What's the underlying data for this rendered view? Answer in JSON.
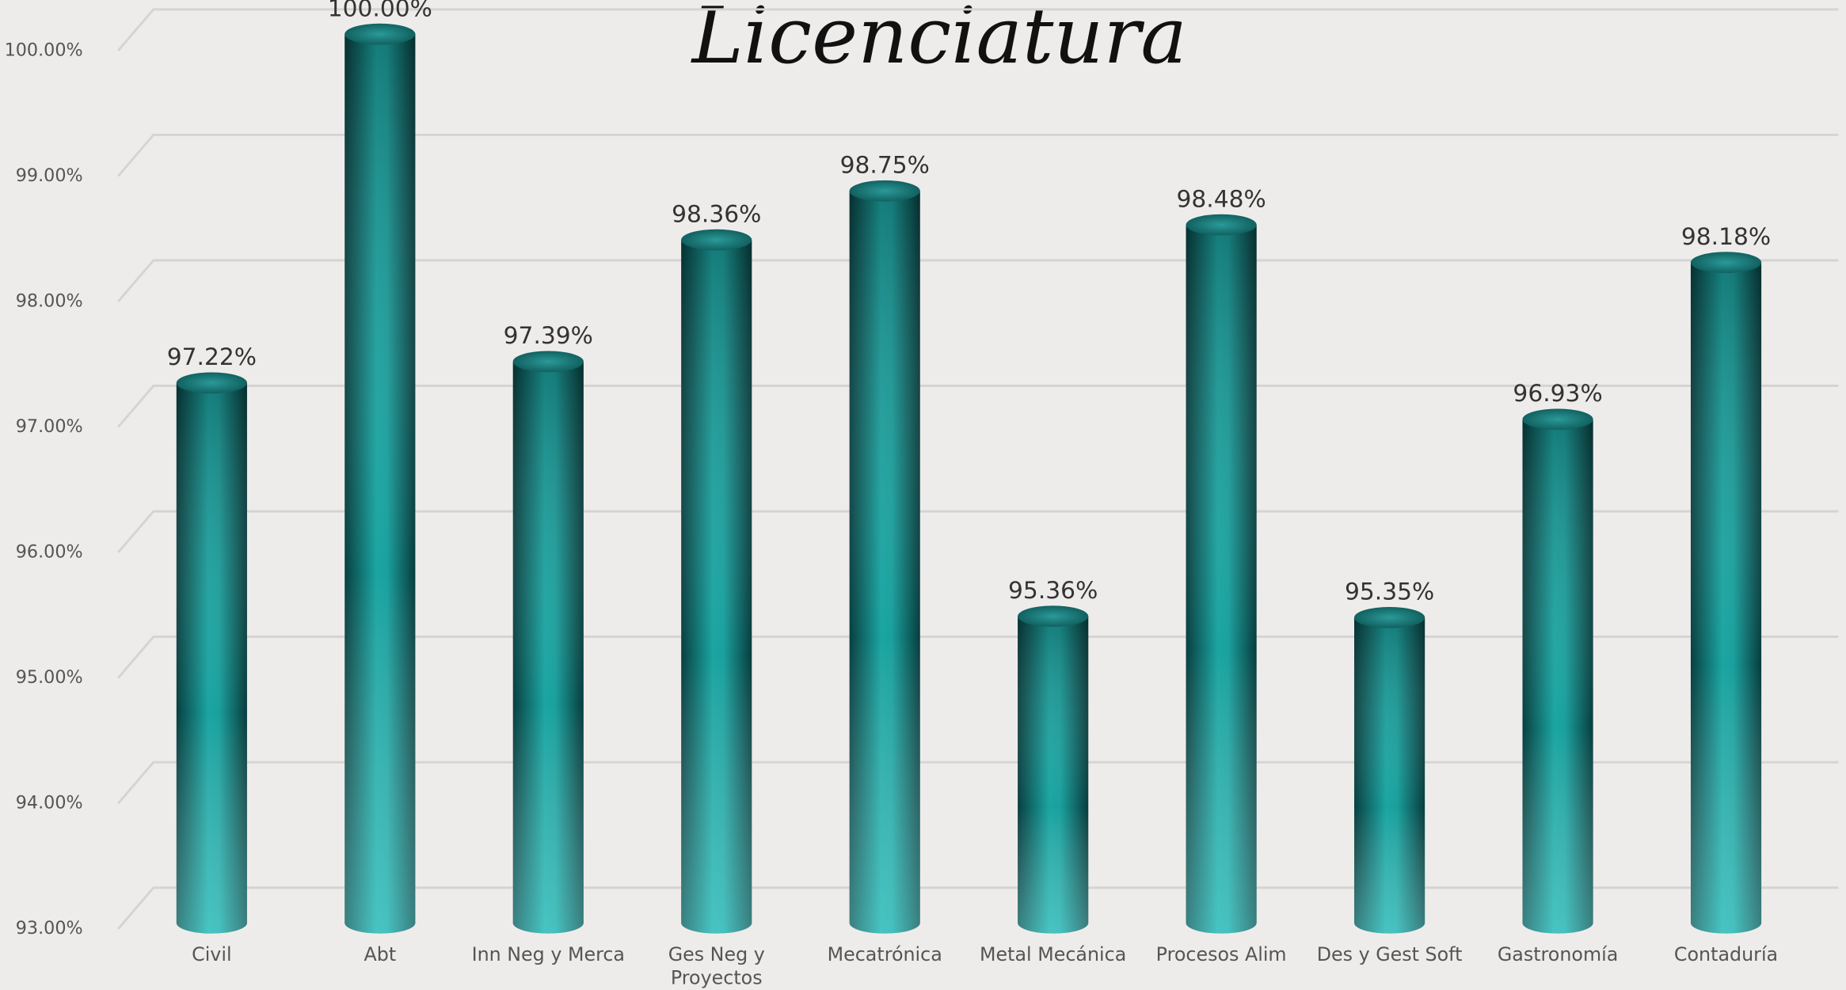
{
  "chart_data": {
    "type": "bar",
    "title": "Licenciatura",
    "categories": [
      "Civil",
      "Abt",
      "Inn Neg y Merca",
      "Ges Neg y Proyectos",
      "Mecatrónica",
      "Metal Mecánica",
      "Procesos Alim",
      "Des y Gest Soft",
      "Gastronomía",
      "Contaduría"
    ],
    "values": [
      97.22,
      100,
      97.39,
      98.36,
      98.75,
      95.36,
      98.48,
      95.35,
      96.93,
      98.18
    ],
    "value_labels": [
      "97.22%",
      "100.00%",
      "97.39%",
      "98.36%",
      "98.75%",
      "95.36%",
      "98.48%",
      "95.35%",
      "96.93%",
      "98.18%"
    ],
    "color": "#1a9e9b",
    "ylim": [
      93,
      100
    ],
    "yticks": [
      {
        "value": 93,
        "label": "93.00%"
      },
      {
        "value": 94,
        "label": "94.00%"
      },
      {
        "value": 95,
        "label": "95.00%"
      },
      {
        "value": 96,
        "label": "96.00%"
      },
      {
        "value": 97,
        "label": "97.00%"
      },
      {
        "value": 98,
        "label": "98.00%"
      },
      {
        "value": 99,
        "label": "99.00%"
      },
      {
        "value": 100,
        "label": "100.00%"
      }
    ],
    "grid": true
  }
}
